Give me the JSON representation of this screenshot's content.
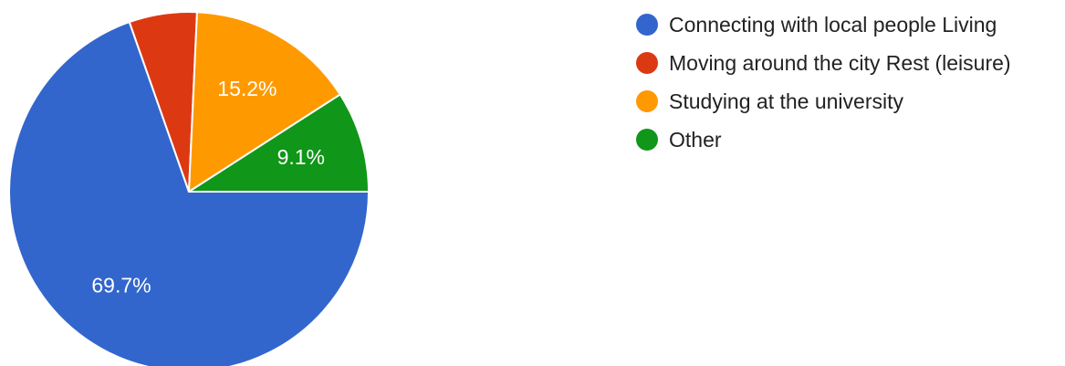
{
  "chart_data": {
    "type": "pie",
    "slices": [
      {
        "name": "Connecting with local people Living",
        "value": 69.7,
        "label": "69.7%",
        "color": "#3366cc"
      },
      {
        "name": "Moving around the city Rest (leisure)",
        "value": 6.1,
        "label": "",
        "color": "#dc3912"
      },
      {
        "name": "Studying at the university",
        "value": 15.2,
        "label": "15.2%",
        "color": "#ff9900"
      },
      {
        "name": "Other",
        "value": 9.1,
        "label": "9.1%",
        "color": "#109618"
      }
    ],
    "legend_position": "right"
  }
}
